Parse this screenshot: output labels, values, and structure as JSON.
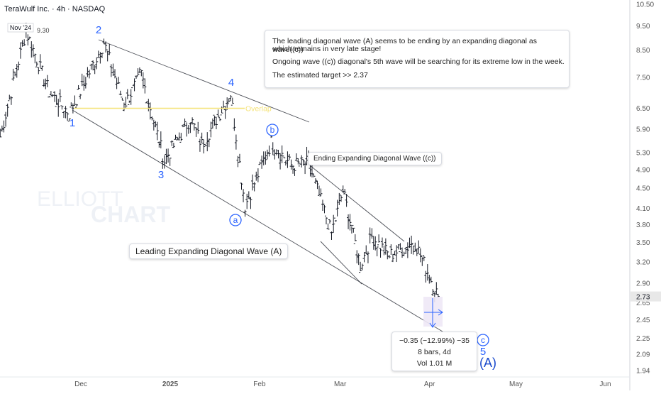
{
  "header": {
    "symbol_line": "TeraWulf Inc. · 4h · NASDAQ"
  },
  "watermark": {
    "line1": "ELLIOTT",
    "line2": "CHART"
  },
  "annotations": {
    "note_line1": "The leading diagonal wave (A) seems to be ending by an expanding diagonal as wave((c))",
    "note_line2": "which remains in very late stage!",
    "note_line3": "Ongoing wave ((c)) diagonal's 5th wave will be searching for its extreme low in the week.",
    "note_line4": "The estimated target >>  2.37",
    "leading_label": "Leading Expanding Diagonal Wave (A)",
    "ending_label": "Ending Expanding Diagonal Wave ((c))",
    "overlap_label": "Overlap",
    "nov_tag": "Nov '24",
    "nov_high": "9.30",
    "measure_line1": "−0.35 (−12.99%) −35",
    "measure_line2": "8 bars, 4d",
    "measure_line3": "Vol 1.01 M"
  },
  "wave_labels": {
    "w1": "1",
    "w2": "2",
    "w3": "3",
    "w4": "4",
    "w5": "5",
    "wa": "a",
    "wb": "b",
    "wc": "c",
    "wA": "(A)"
  },
  "colors": {
    "wave_blue": "#2962ff",
    "wave_dark": "#1848cc",
    "bars": "#131722",
    "trendline": "#131722",
    "overlap": "#f5e37a",
    "axis_text": "#555555",
    "last_price_bg": "#e8e8e8"
  },
  "chart_data": {
    "type": "ohlc",
    "symbol": "TeraWulf Inc.",
    "interval": "4h",
    "exchange": "NASDAQ",
    "y_scale": "log",
    "ylim": [
      1.9,
      10.5
    ],
    "y_ticks": [
      "10.50",
      "9.50",
      "8.50",
      "7.50",
      "6.50",
      "5.90",
      "5.30",
      "4.90",
      "4.50",
      "4.10",
      "3.80",
      "3.50",
      "3.20",
      "2.90",
      "2.65",
      "2.45",
      "2.25",
      "2.09",
      "1.94"
    ],
    "x_ticks": [
      "Dec",
      "2025",
      "Feb",
      "Mar",
      "Apr",
      "May",
      "Jun"
    ],
    "last_price": "2.73",
    "overlap_level": 6.5,
    "target": 2.37,
    "key_prices": [
      {
        "label": "Nov '24 high",
        "date": "2024-11-12",
        "price": 9.3
      },
      {
        "label": "1",
        "date": "2024-11-27",
        "price": 6.35
      },
      {
        "label": "2",
        "date": "2024-12-09",
        "price": 8.8
      },
      {
        "label": "3",
        "date": "2024-12-30",
        "price": 5.1
      },
      {
        "label": "4",
        "date": "2025-01-22",
        "price": 6.95
      },
      {
        "label": "a",
        "date": "2025-01-27",
        "price": 4.15
      },
      {
        "label": "b",
        "date": "2025-02-05",
        "price": 5.55
      },
      {
        "label": "last",
        "date": "2025-04-04",
        "price": 2.73
      }
    ]
  }
}
